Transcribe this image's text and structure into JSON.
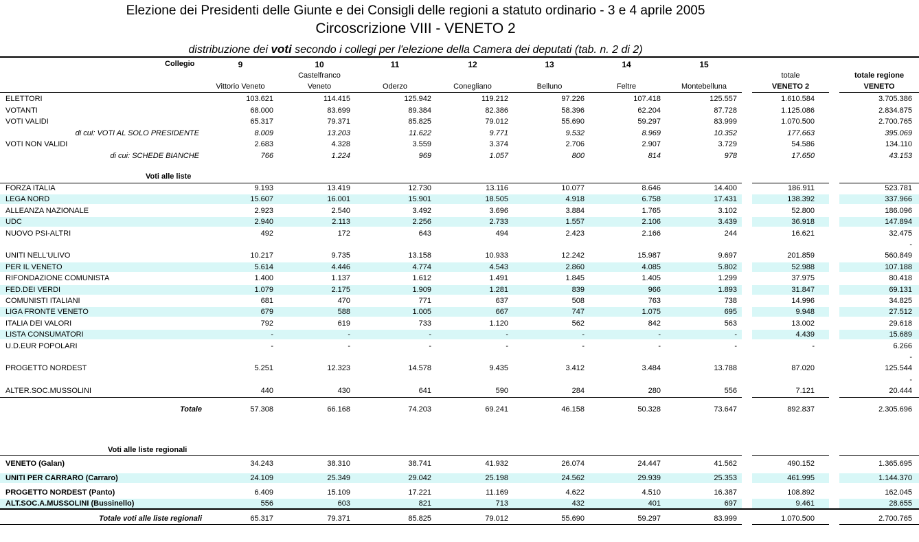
{
  "header": {
    "title1": "Elezione dei Presidenti delle Giunte e dei Consigli delle regioni a statuto ordinario - 3 e 4 aprile 2005",
    "title2": "Circoscrizione VIII - VENETO 2",
    "subtitle_pre": "distribuzione dei ",
    "subtitle_bold": "voti",
    "subtitle_post": "  secondo i collegi per l'elezione della Camera dei deputati (tab. n. 2 di 2)"
  },
  "columns": {
    "collegio_label": "Collegio",
    "numbers": [
      "9",
      "10",
      "11",
      "12",
      "13",
      "14",
      "15"
    ],
    "names_line1": [
      "",
      "Castelfranco",
      "",
      "",
      "",
      "",
      ""
    ],
    "names_line2": [
      "Vittorio Veneto",
      "Veneto",
      "Oderzo",
      "Conegliano",
      "Belluno",
      "Feltre",
      "Montebelluna"
    ],
    "total_line1": "totale",
    "total_line2": "VENETO 2",
    "region_line1": "totale regione",
    "region_line2": "VENETO"
  },
  "general_rows": [
    {
      "label": "ELETTORI",
      "values": [
        "103.621",
        "114.415",
        "125.942",
        "119.212",
        "97.226",
        "107.418",
        "125.557"
      ],
      "total": "1.610.584",
      "region": "3.705.386"
    },
    {
      "label": "VOTANTI",
      "values": [
        "68.000",
        "83.699",
        "89.384",
        "82.386",
        "58.396",
        "62.204",
        "87.728"
      ],
      "total": "1.125.086",
      "region": "2.834.875"
    },
    {
      "label": "VOTI VALIDI",
      "values": [
        "65.317",
        "79.371",
        "85.825",
        "79.012",
        "55.690",
        "59.297",
        "83.999"
      ],
      "total": "1.070.500",
      "region": "2.700.765"
    },
    {
      "label": "di cui: VOTI AL SOLO PRESIDENTE",
      "values": [
        "8.009",
        "13.203",
        "11.622",
        "9.771",
        "9.532",
        "8.969",
        "10.352"
      ],
      "total": "177.663",
      "region": "395.069"
    },
    {
      "label": "VOTI NON VALIDI",
      "values": [
        "2.683",
        "4.328",
        "3.559",
        "3.374",
        "2.706",
        "2.907",
        "3.729"
      ],
      "total": "54.586",
      "region": "134.110"
    },
    {
      "label": "di cui:  SCHEDE BIANCHE",
      "values": [
        "766",
        "1.224",
        "969",
        "1.057",
        "800",
        "814",
        "978"
      ],
      "total": "17.650",
      "region": "43.153"
    }
  ],
  "liste": {
    "section_label": "Voti alle liste",
    "rows": [
      {
        "label": "FORZA ITALIA",
        "values": [
          "9.193",
          "13.419",
          "12.730",
          "13.116",
          "10.077",
          "8.646",
          "14.400"
        ],
        "total": "186.911",
        "region": "523.781"
      },
      {
        "label": "LEGA NORD",
        "values": [
          "15.607",
          "16.001",
          "15.901",
          "18.505",
          "4.918",
          "6.758",
          "17.431"
        ],
        "total": "138.392",
        "region": "337.966"
      },
      {
        "label": "ALLEANZA NAZIONALE",
        "values": [
          "2.923",
          "2.540",
          "3.492",
          "3.696",
          "3.884",
          "1.765",
          "3.102"
        ],
        "total": "52.800",
        "region": "186.096"
      },
      {
        "label": "UDC",
        "values": [
          "2.940",
          "2.113",
          "2.256",
          "2.733",
          "1.557",
          "2.106",
          "3.439"
        ],
        "total": "36.918",
        "region": "147.894"
      },
      {
        "label": "NUOVO PSI-ALTRI",
        "values": [
          "492",
          "172",
          "643",
          "494",
          "2.423",
          "2.166",
          "244"
        ],
        "total": "16.621",
        "region": "32.475"
      },
      {
        "label": "",
        "values": [
          "",
          "",
          "",
          "",
          "",
          "",
          ""
        ],
        "total": "",
        "region": "-"
      },
      {
        "label": "UNITI NELL'ULIVO",
        "values": [
          "10.217",
          "9.735",
          "13.158",
          "10.933",
          "12.242",
          "15.987",
          "9.697"
        ],
        "total": "201.859",
        "region": "560.849"
      },
      {
        "label": "PER IL VENETO",
        "values": [
          "5.614",
          "4.446",
          "4.774",
          "4.543",
          "2.860",
          "4.085",
          "5.802"
        ],
        "total": "52.988",
        "region": "107.188"
      },
      {
        "label": "RIFONDAZIONE COMUNISTA",
        "values": [
          "1.400",
          "1.137",
          "1.612",
          "1.491",
          "1.845",
          "1.405",
          "1.299"
        ],
        "total": "37.975",
        "region": "80.418"
      },
      {
        "label": "FED.DEI VERDI",
        "values": [
          "1.079",
          "2.175",
          "1.909",
          "1.281",
          "839",
          "966",
          "1.893"
        ],
        "total": "31.847",
        "region": "69.131"
      },
      {
        "label": "COMUNISTI ITALIANI",
        "values": [
          "681",
          "470",
          "771",
          "637",
          "508",
          "763",
          "738"
        ],
        "total": "14.996",
        "region": "34.825"
      },
      {
        "label": "LIGA FRONTE VENETO",
        "values": [
          "679",
          "588",
          "1.005",
          "667",
          "747",
          "1.075",
          "695"
        ],
        "total": "9.948",
        "region": "27.512"
      },
      {
        "label": "ITALIA DEI VALORI",
        "values": [
          "792",
          "619",
          "733",
          "1.120",
          "562",
          "842",
          "563"
        ],
        "total": "13.002",
        "region": "29.618"
      },
      {
        "label": "LISTA CONSUMATORI",
        "values": [
          "-",
          "-",
          "-",
          "-",
          "-",
          "-",
          "-"
        ],
        "total": "4.439",
        "region": "15.689"
      },
      {
        "label": "U.D.EUR POPOLARI",
        "values": [
          "-",
          "-",
          "-",
          "-",
          "-",
          "-",
          "-"
        ],
        "total": "-",
        "region": "6.266"
      },
      {
        "label": "",
        "values": [
          "",
          "",
          "",
          "",
          "",
          "",
          ""
        ],
        "total": "",
        "region": "-"
      },
      {
        "label": "PROGETTO NORDEST",
        "values": [
          "5.251",
          "12.323",
          "14.578",
          "9.435",
          "3.412",
          "3.484",
          "13.788"
        ],
        "total": "87.020",
        "region": "125.544"
      },
      {
        "label": "",
        "values": [
          "",
          "",
          "",
          "",
          "",
          "",
          ""
        ],
        "total": "",
        "region": "-"
      },
      {
        "label": "ALTER.SOC.MUSSOLINI",
        "values": [
          "440",
          "430",
          "641",
          "590",
          "284",
          "280",
          "556"
        ],
        "total": "7.121",
        "region": "20.444"
      }
    ],
    "totale": {
      "label": "Totale",
      "values": [
        "57.308",
        "66.168",
        "74.203",
        "69.241",
        "46.158",
        "50.328",
        "73.647"
      ],
      "total": "892.837",
      "region": "2.305.696"
    }
  },
  "regionali": {
    "section_label": "Voti alle liste regionali",
    "rows": [
      {
        "label": "VENETO (Galan)",
        "values": [
          "34.243",
          "38.310",
          "38.741",
          "41.932",
          "26.074",
          "24.447",
          "41.562"
        ],
        "total": "490.152",
        "region": "1.365.695"
      },
      {
        "label": "UNITI PER CARRARO (Carraro)",
        "values": [
          "24.109",
          "25.349",
          "29.042",
          "25.198",
          "24.562",
          "29.939",
          "25.353"
        ],
        "total": "461.995",
        "region": "1.144.370"
      },
      {
        "label": "PROGETTO NORDEST (Panto)",
        "values": [
          "6.409",
          "15.109",
          "17.221",
          "11.169",
          "4.622",
          "4.510",
          "16.387"
        ],
        "total": "108.892",
        "region": "162.045"
      },
      {
        "label": "ALT.SOC.A.MUSSOLINI (Bussinello)",
        "values": [
          "556",
          "603",
          "821",
          "713",
          "432",
          "401",
          "697"
        ],
        "total": "9.461",
        "region": "28.655"
      }
    ],
    "totale": {
      "label": "Totale voti alle liste regionali",
      "values": [
        "65.317",
        "79.371",
        "85.825",
        "79.012",
        "55.690",
        "59.297",
        "83.999"
      ],
      "total": "1.070.500",
      "region": "2.700.765"
    }
  },
  "colors": {
    "row_highlight": "#d8f7f7"
  }
}
